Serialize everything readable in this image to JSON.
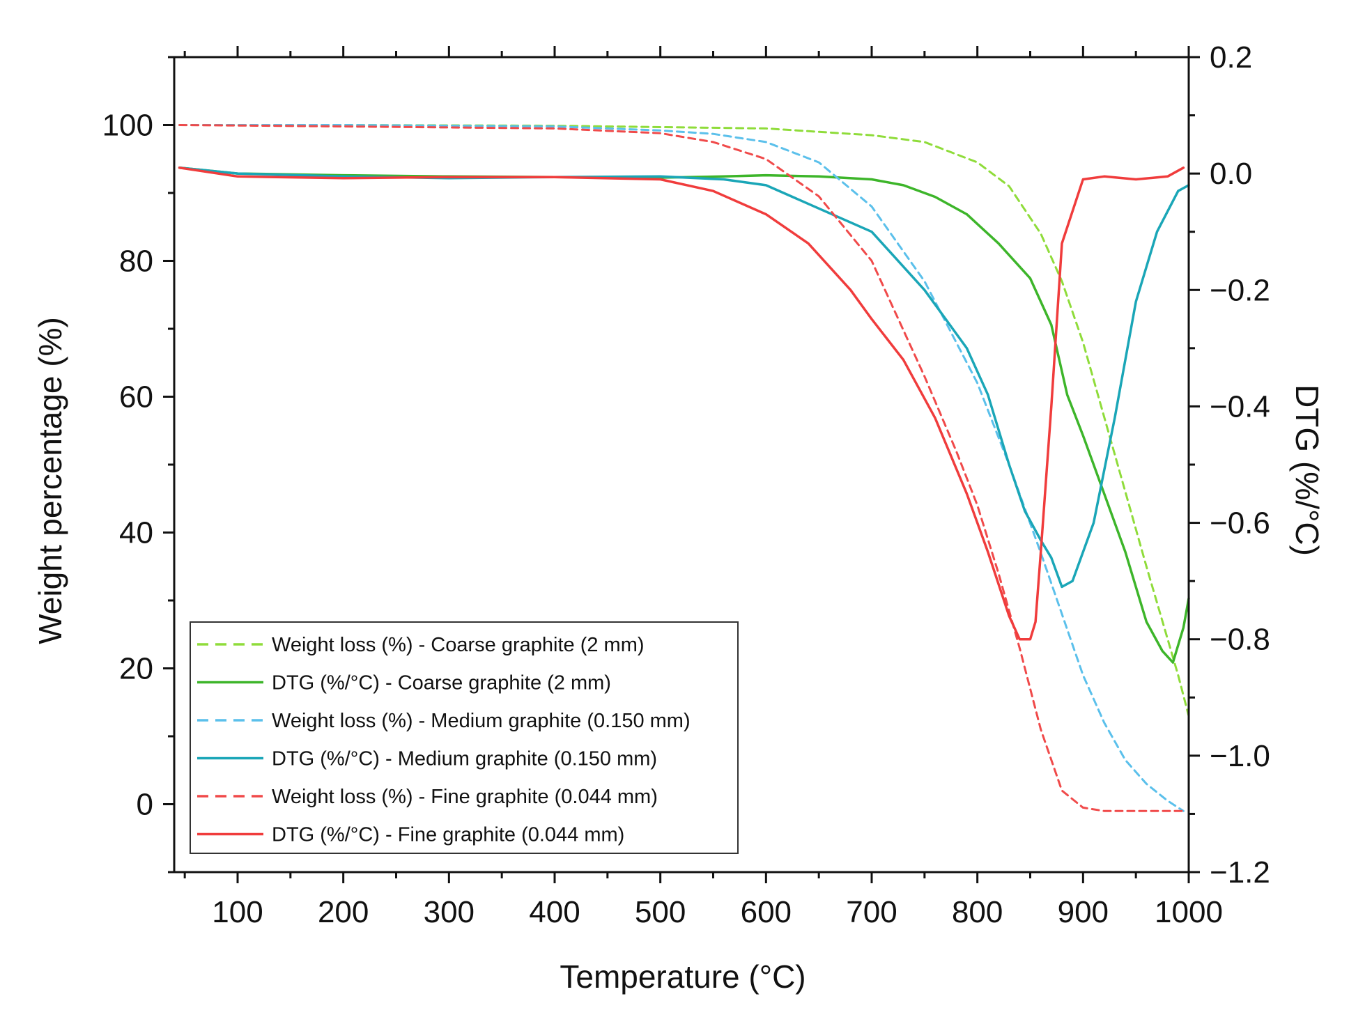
{
  "chart_data": {
    "type": "line",
    "title": "",
    "xlabel": "Temperature (°C)",
    "ylabel": "Weight percentage (%)",
    "y2label": "DTG (%/°C)",
    "xlim": [
      40,
      1000
    ],
    "ylim": [
      -10,
      110
    ],
    "y2lim": [
      -1.2,
      0.2
    ],
    "xticks": [
      100,
      200,
      300,
      400,
      500,
      600,
      700,
      800,
      900,
      1000
    ],
    "yticks": [
      0,
      20,
      40,
      60,
      80,
      100
    ],
    "y2ticks": [
      0.2,
      0.0,
      -0.2,
      -0.4,
      -0.6,
      -0.8,
      -1.0,
      -1.2
    ],
    "xtick_labels": [
      "100",
      "200",
      "300",
      "400",
      "500",
      "600",
      "700",
      "800",
      "900",
      "1000"
    ],
    "ytick_labels": [
      "0",
      "20",
      "40",
      "60",
      "80",
      "100"
    ],
    "y2tick_labels": [
      "0.2",
      "0.0",
      "−0.2",
      "−0.4",
      "−0.6",
      "−0.8",
      "−1.0",
      "−1.2"
    ],
    "legend_position": "bottom-left",
    "series": [
      {
        "name": "Weight loss (%) - Coarse graphite (2 mm)",
        "axis": "left",
        "style": "dashed",
        "color": "#8fdc3a",
        "x": [
          45,
          200,
          400,
          600,
          700,
          750,
          800,
          830,
          860,
          880,
          900,
          920,
          940,
          960,
          975,
          990,
          1000
        ],
        "y": [
          100,
          100,
          99.9,
          99.5,
          98.5,
          97.5,
          94.5,
          91,
          84,
          77,
          68,
          57,
          46,
          35,
          27,
          19,
          13
        ]
      },
      {
        "name": "DTG (%/°C) - Coarse graphite (2 mm)",
        "axis": "right",
        "style": "solid",
        "color": "#3db52a",
        "x": [
          45,
          100,
          200,
          300,
          400,
          500,
          560,
          600,
          650,
          700,
          730,
          760,
          790,
          820,
          850,
          870,
          885,
          900,
          920,
          940,
          960,
          975,
          985,
          995,
          1000
        ],
        "y": [
          0.01,
          0.0,
          -0.003,
          -0.005,
          -0.006,
          -0.007,
          -0.005,
          -0.003,
          -0.005,
          -0.01,
          -0.02,
          -0.04,
          -0.07,
          -0.12,
          -0.18,
          -0.26,
          -0.38,
          -0.45,
          -0.55,
          -0.65,
          -0.77,
          -0.82,
          -0.84,
          -0.78,
          -0.73
        ]
      },
      {
        "name": "Weight loss (%) - Medium graphite (0.150 mm)",
        "axis": "left",
        "style": "dashed",
        "color": "#5bc0eb",
        "x": [
          45,
          200,
          400,
          500,
          550,
          600,
          650,
          700,
          750,
          800,
          830,
          860,
          880,
          900,
          920,
          940,
          960,
          980,
          995
        ],
        "y": [
          100,
          100,
          99.8,
          99.2,
          98.7,
          97.5,
          94.5,
          88,
          77,
          62,
          50,
          37,
          28,
          19,
          12,
          6.5,
          3,
          0.5,
          -1
        ]
      },
      {
        "name": "DTG (%/°C) - Medium graphite (0.150 mm)",
        "axis": "right",
        "style": "solid",
        "color": "#1aa6b7",
        "x": [
          45,
          100,
          200,
          300,
          400,
          500,
          560,
          600,
          650,
          700,
          720,
          750,
          770,
          790,
          810,
          830,
          845,
          860,
          870,
          880,
          890,
          910,
          930,
          950,
          970,
          990,
          1000
        ],
        "y": [
          0.01,
          0.0,
          -0.005,
          -0.008,
          -0.006,
          -0.005,
          -0.01,
          -0.02,
          -0.06,
          -0.1,
          -0.14,
          -0.2,
          -0.25,
          -0.3,
          -0.38,
          -0.5,
          -0.58,
          -0.63,
          -0.66,
          -0.71,
          -0.7,
          -0.6,
          -0.42,
          -0.22,
          -0.1,
          -0.03,
          -0.02
        ]
      },
      {
        "name": "Weight loss (%) - Fine graphite (0.044 mm)",
        "axis": "left",
        "style": "dashed",
        "color": "#f04a4a",
        "x": [
          45,
          200,
          400,
          500,
          550,
          600,
          650,
          700,
          750,
          780,
          800,
          820,
          840,
          860,
          880,
          900,
          920,
          950,
          995
        ],
        "y": [
          100,
          99.8,
          99.5,
          98.8,
          97.5,
          95,
          89.5,
          80,
          63,
          52,
          44,
          34,
          23,
          11,
          2,
          -0.5,
          -1,
          -1,
          -1
        ]
      },
      {
        "name": "DTG (%/°C) - Fine graphite (0.044 mm)",
        "axis": "right",
        "style": "solid",
        "color": "#f03c3c",
        "x": [
          45,
          100,
          200,
          300,
          400,
          500,
          550,
          600,
          640,
          680,
          700,
          730,
          760,
          790,
          810,
          830,
          840,
          850,
          855,
          860,
          870,
          880,
          900,
          920,
          950,
          980,
          995
        ],
        "y": [
          0.01,
          -0.005,
          -0.008,
          -0.006,
          -0.006,
          -0.01,
          -0.03,
          -0.07,
          -0.12,
          -0.2,
          -0.25,
          -0.32,
          -0.42,
          -0.55,
          -0.65,
          -0.76,
          -0.8,
          -0.8,
          -0.77,
          -0.65,
          -0.4,
          -0.12,
          -0.01,
          -0.005,
          -0.01,
          -0.005,
          0.01
        ]
      }
    ]
  }
}
